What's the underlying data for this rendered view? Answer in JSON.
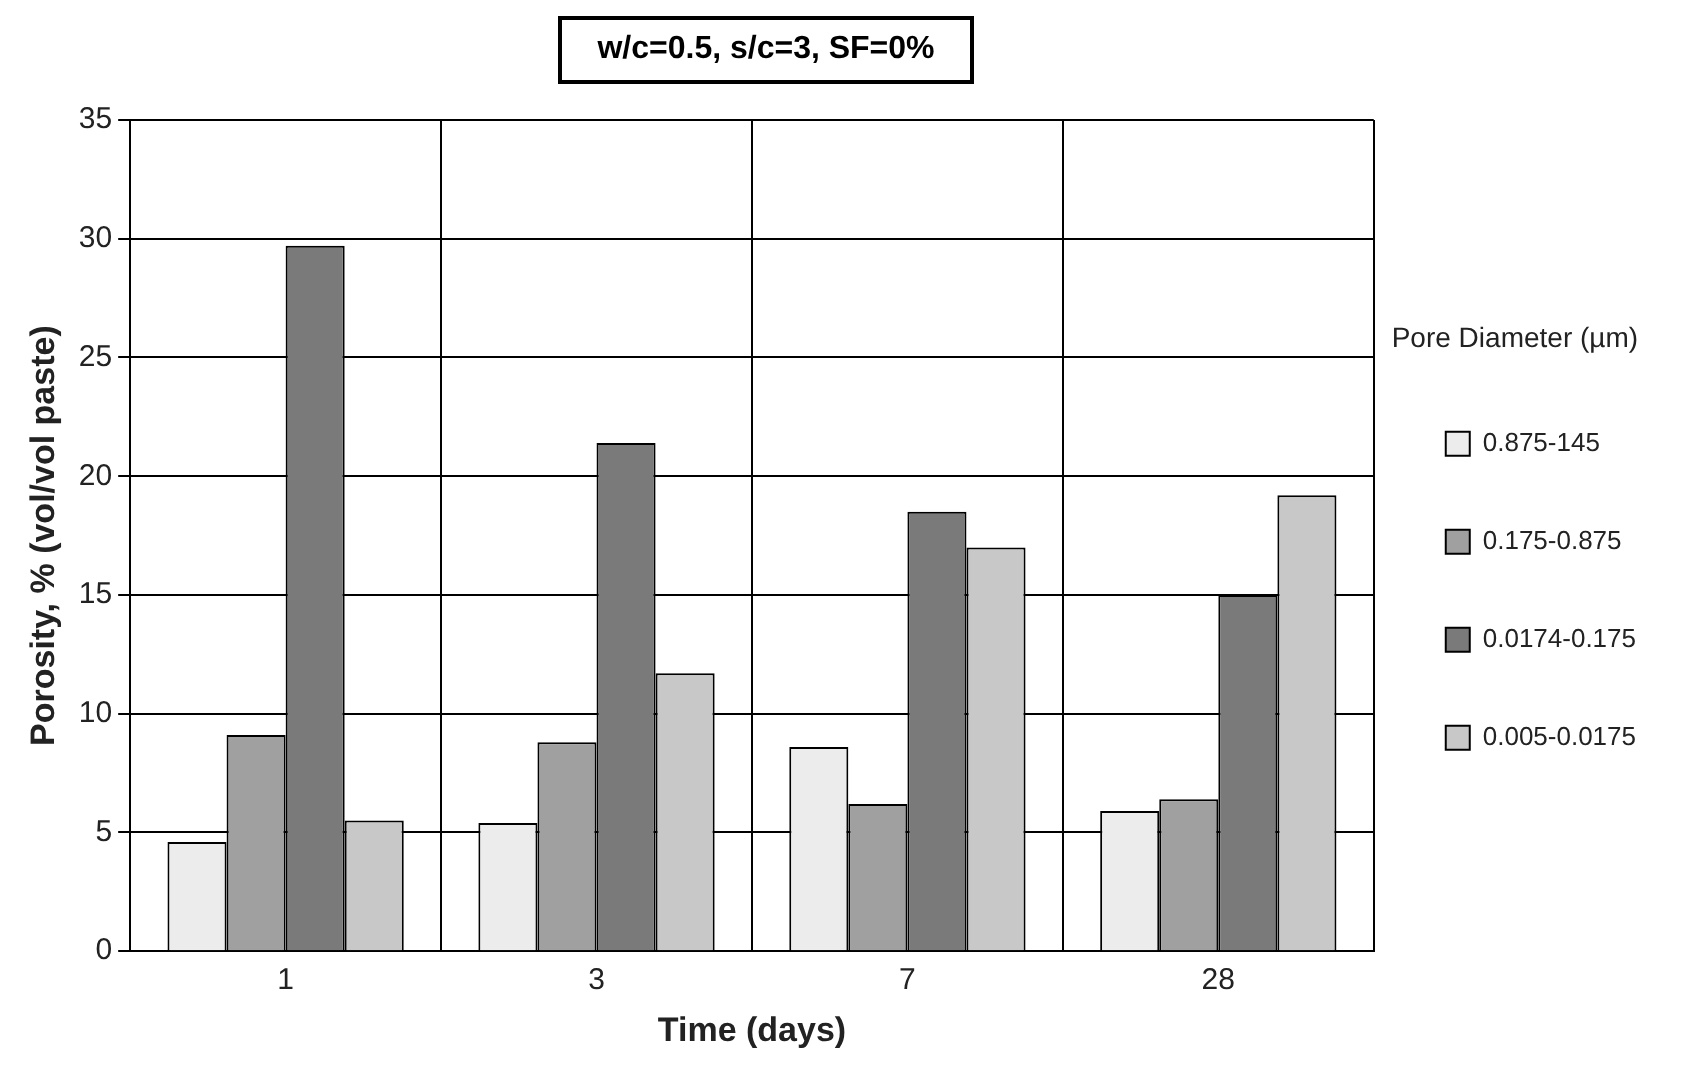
{
  "chart_data": {
    "type": "bar",
    "title": "w/c=0.5, s/c=3, SF=0%",
    "xlabel": "Time (days)",
    "ylabel": "Porosity, % (vol/vol paste)",
    "legend_title": "Pore Diameter (µm)",
    "categories": [
      "1",
      "3",
      "7",
      "28"
    ],
    "series": [
      {
        "name": "0.875-145",
        "color": "#ececec",
        "values": [
          4.6,
          5.4,
          8.6,
          5.9
        ]
      },
      {
        "name": "0.175-0.875",
        "color": "#a0a0a0",
        "values": [
          9.1,
          8.8,
          6.2,
          6.4
        ]
      },
      {
        "name": "0.0174-0.175",
        "color": "#7a7a7a",
        "values": [
          29.7,
          21.4,
          18.5,
          15.0
        ]
      },
      {
        "name": "0.005-0.0175",
        "color": "#c8c8c8",
        "values": [
          5.5,
          11.7,
          17.0,
          19.2
        ]
      }
    ],
    "ylim": [
      0,
      35
    ],
    "yticks": [
      0,
      5,
      10,
      15,
      20,
      25,
      30,
      35
    ],
    "grid": true,
    "legend": "right"
  }
}
